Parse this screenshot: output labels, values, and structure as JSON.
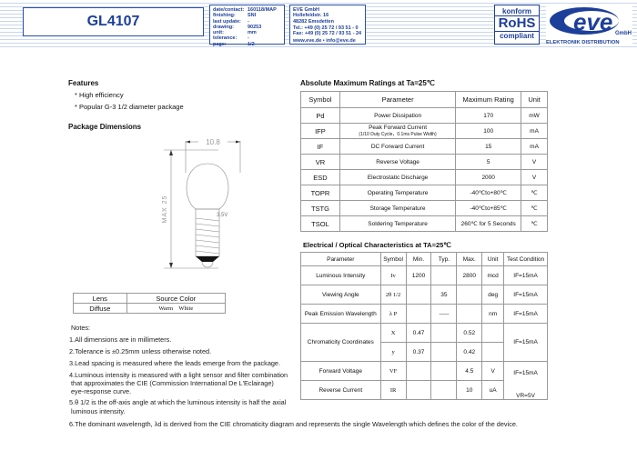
{
  "header": {
    "title": "GL4107",
    "info": [
      [
        "date/contact:",
        "160118/MAP"
      ],
      [
        "finishing:",
        "SNI"
      ],
      [
        "last update:",
        "-"
      ],
      [
        "drawing:",
        "90253"
      ],
      [
        "unit:",
        "mm"
      ],
      [
        "tolerance:",
        "-"
      ],
      [
        "page:",
        "1/2"
      ]
    ],
    "company": [
      "EVE GmbH",
      "Hollefeldstr. 16",
      "48282 Emsdetten",
      "Tel.: +49 (0) 25 72 / 93 51 - 0",
      "Fax: +49 (0) 25 72 / 93 51 - 24",
      "www.eve.de • info@eve.de"
    ],
    "rohs": [
      "konform",
      "RoHS",
      "compliant"
    ],
    "logo": {
      "text": "eve",
      "sub": "GmbH",
      "tagline": "ELEKTRONIK DISTRIBUTION"
    }
  },
  "features": {
    "title": "Features",
    "items": [
      "* High efficiency",
      "* Popular G-3 1/2 diameter package"
    ]
  },
  "package": {
    "title": "Package Dimensions",
    "width_dim": "10.8",
    "height_dim": "MAX 25",
    "voltage": "3.5V"
  },
  "lens_table": {
    "headers": [
      "Lens",
      "Source Color"
    ],
    "row": [
      "Diffuse",
      "Warm    White"
    ]
  },
  "notes": {
    "title": "Notes:",
    "items": [
      "1.All dimensions are in millimeters.",
      "2.Tolerance is ±0.25mm unless otherwise noted.",
      "3.Lead spacing is measured where the leads emerge from the package.",
      "4.Luminous intensity is measured with a light sensor and filter combination",
      "that approximates the CIE (Commission International De L'Eclairage)",
      "eye-response curve.",
      "5.θ 1/2 is the off-axis angle at which the luminous intensity is half the axial",
      "luminous intensity.",
      "6.The dominant wavelength, λd is derived from the CIE chromaticity diagram and represents the single Wavelength which defines the color of the device."
    ]
  },
  "abs_ratings": {
    "title": "Absolute Maximum Ratings at Ta=25℃",
    "headers": [
      "Symbol",
      "Parameter",
      "Maximum Rating",
      "Unit"
    ],
    "rows": [
      [
        "Pd",
        "Power Dissipation",
        "170",
        "mW"
      ],
      [
        "IFP",
        "Peak Forward Current",
        "100",
        "mA"
      ],
      [
        "IF",
        "DC Forward Current",
        "15",
        "mA"
      ],
      [
        "VR",
        "Reverse Voltage",
        "5",
        "V"
      ],
      [
        "ESD",
        "Electrostatic Discharge",
        "2000",
        "V"
      ],
      [
        "TOPR",
        "Operating Temperature",
        "-40℃to+80℃",
        "℃"
      ],
      [
        "TSTG",
        "Storage Temperature",
        "-40℃to+85℃",
        "℃"
      ],
      [
        "TSOL",
        "Soldering Temperature",
        "260℃ for 5 Seconds",
        "℃"
      ]
    ],
    "ifp_note": "(1/10 Duty Cycle，0.1ms Pulse Width)"
  },
  "electrical": {
    "title": "Electrical / Optical Characteristics at TA=25℃",
    "headers": [
      "Parameter",
      "Symbol",
      "Min.",
      "Typ.",
      "Max.",
      "Unit",
      "Test Condition"
    ],
    "rows": [
      [
        "Luminous Intensity",
        "Iv",
        "1200",
        "",
        "2800",
        "mcd",
        "IF=15mA"
      ],
      [
        "Viewing Angle",
        "2θ 1/2",
        "",
        "35",
        "",
        "deg",
        "IF=15mA"
      ],
      [
        "Peak Emission Wavelength",
        "λ P",
        "",
        "-----",
        "",
        "nm",
        "IF=15mA"
      ],
      [
        "Chromaticity Coordinates",
        "X",
        "0.47",
        "",
        "0.52",
        "",
        "IF=15mA"
      ],
      [
        "",
        "y",
        "0.37",
        "",
        "0.42",
        "",
        ""
      ],
      [
        "Forward Voltage",
        "VF",
        "",
        "",
        "4.5",
        "V",
        "IF=15mA"
      ],
      [
        "Reverse Current",
        "IR",
        "",
        "",
        "10",
        "uA",
        "VR=5V"
      ]
    ]
  }
}
